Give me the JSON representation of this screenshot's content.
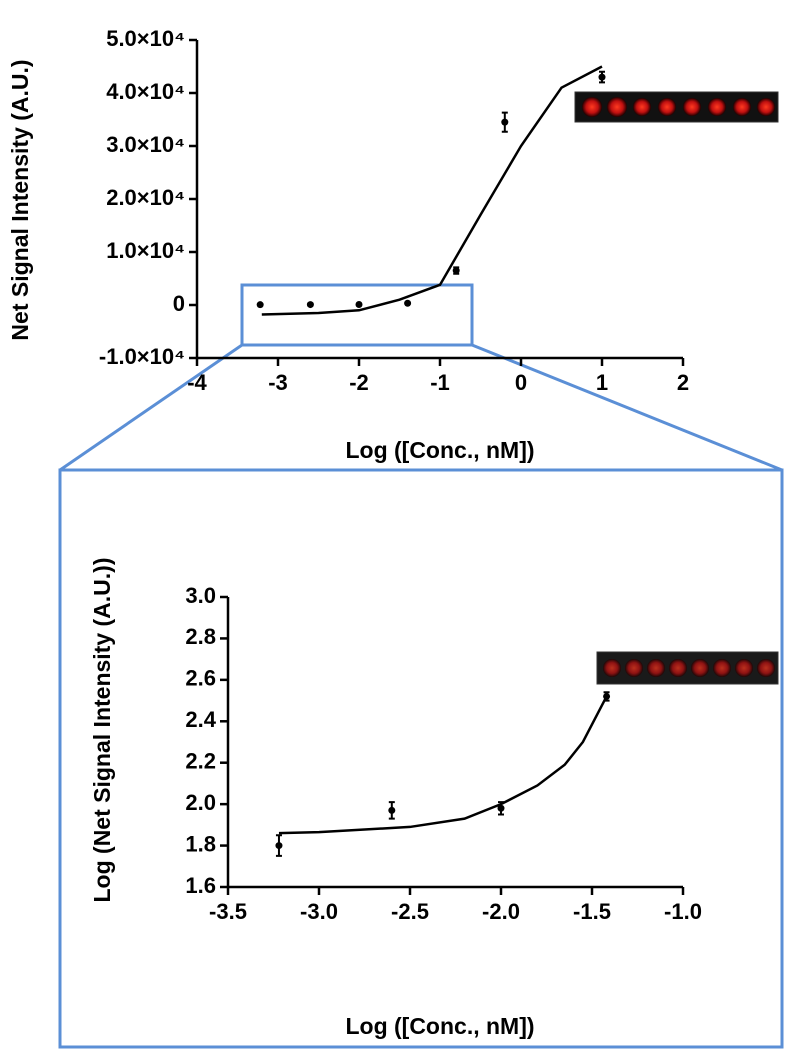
{
  "chart_data": [
    {
      "type": "scatter",
      "x_label": "Log ([Conc., nM])",
      "y_label": "Net Signal Intensity (A.U.)",
      "xlim": [
        -4,
        2
      ],
      "xticks": [
        -4,
        -3,
        -2,
        -1,
        0,
        1,
        2
      ],
      "ylim": [
        -10000,
        50000
      ],
      "yticks": [
        {
          "value": -10000,
          "label": "-1.0×10⁴"
        },
        0,
        {
          "value": 10000,
          "label": "1.0×10⁴"
        },
        {
          "value": 20000,
          "label": "2.0×10⁴"
        },
        {
          "value": 30000,
          "label": "3.0×10⁴"
        },
        {
          "value": 40000,
          "label": "4.0×10⁴"
        },
        {
          "value": 50000,
          "label": "5.0×10⁴"
        }
      ],
      "series": [
        {
          "type": "scatter",
          "color": "#000000",
          "x": [
            -3.22,
            -2.6,
            -2.0,
            -1.4,
            -0.8,
            -0.2,
            1.0
          ],
          "values": [
            60,
            80,
            90,
            330,
            6500,
            34500,
            43000
          ],
          "errors": [
            150,
            150,
            150,
            150,
            600,
            1800,
            1000
          ]
        },
        {
          "type": "line",
          "color": "#000000",
          "x": [
            -3.2,
            -2.5,
            -2.0,
            -1.5,
            -1.0,
            -0.5,
            0.0,
            0.5,
            1.0
          ],
          "values": [
            -1800,
            -1500,
            -1000,
            1000,
            3800,
            17000,
            30000,
            41000,
            45000
          ]
        }
      ]
    },
    {
      "type": "scatter",
      "x_label": "Log ([Conc., nM])",
      "y_label": "Log (Net Signal Intensity (A.U.))",
      "xlim": [
        -3.5,
        -1.0
      ],
      "xticks": [
        -3.5,
        {
          "value": -3.0,
          "label": "-3.0"
        },
        -2.5,
        {
          "value": -2.0,
          "label": "-2.0"
        },
        -1.5,
        {
          "value": -1.0,
          "label": "-1.0"
        }
      ],
      "ylim": [
        1.6,
        3.0
      ],
      "yticks": [
        1.6,
        1.8,
        {
          "value": 2.0,
          "label": "2.0"
        },
        2.2,
        2.4,
        2.6,
        2.8,
        {
          "value": 3.0,
          "label": "3.0"
        }
      ],
      "series": [
        {
          "type": "scatter",
          "color": "#000000",
          "x": [
            -3.22,
            -2.6,
            -2.0,
            -1.42
          ],
          "values": [
            1.8,
            1.97,
            1.98,
            2.52
          ],
          "errors": [
            0.05,
            0.04,
            0.03,
            0.02
          ]
        },
        {
          "type": "line",
          "color": "#000000",
          "x": [
            -3.22,
            -3.0,
            -2.5,
            -2.2,
            -2.0,
            -1.8,
            -1.65,
            -1.55,
            -1.42
          ],
          "values": [
            1.86,
            1.865,
            1.89,
            1.93,
            2.0,
            2.09,
            2.19,
            2.3,
            2.52
          ]
        }
      ]
    }
  ]
}
